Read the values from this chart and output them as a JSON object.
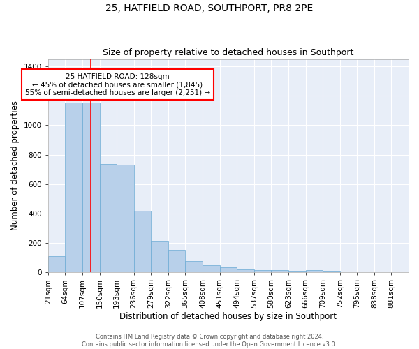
{
  "title": "25, HATFIELD ROAD, SOUTHPORT, PR8 2PE",
  "subtitle": "Size of property relative to detached houses in Southport",
  "xlabel": "Distribution of detached houses by size in Southport",
  "ylabel": "Number of detached properties",
  "bar_color": "#b8d0ea",
  "bar_edge_color": "#6aaad4",
  "background_color": "#e8eef8",
  "grid_color": "white",
  "categories": [
    "21sqm",
    "64sqm",
    "107sqm",
    "150sqm",
    "193sqm",
    "236sqm",
    "279sqm",
    "322sqm",
    "365sqm",
    "408sqm",
    "451sqm",
    "494sqm",
    "537sqm",
    "580sqm",
    "623sqm",
    "666sqm",
    "709sqm",
    "752sqm",
    "795sqm",
    "838sqm",
    "881sqm"
  ],
  "bin_edges": [
    21,
    64,
    107,
    150,
    193,
    236,
    279,
    322,
    365,
    408,
    451,
    494,
    537,
    580,
    623,
    666,
    709,
    752,
    795,
    838,
    881,
    924
  ],
  "bar_heights": [
    110,
    1155,
    1155,
    735,
    730,
    420,
    215,
    155,
    75,
    50,
    33,
    20,
    15,
    14,
    10,
    14,
    10,
    0,
    0,
    0,
    4
  ],
  "annotation_text": "25 HATFIELD ROAD: 128sqm\n← 45% of detached houses are smaller (1,845)\n55% of semi-detached houses are larger (2,251) →",
  "annotation_box_color": "white",
  "annotation_box_edge": "red",
  "red_line_x": 128,
  "ylim": [
    0,
    1450
  ],
  "yticks": [
    0,
    200,
    400,
    600,
    800,
    1000,
    1200,
    1400
  ],
  "footer": "Contains HM Land Registry data © Crown copyright and database right 2024.\nContains public sector information licensed under the Open Government Licence v3.0.",
  "title_fontsize": 10,
  "subtitle_fontsize": 9,
  "xlabel_fontsize": 8.5,
  "ylabel_fontsize": 8.5,
  "tick_fontsize": 7.5,
  "annotation_fontsize": 7.5,
  "footer_fontsize": 6
}
